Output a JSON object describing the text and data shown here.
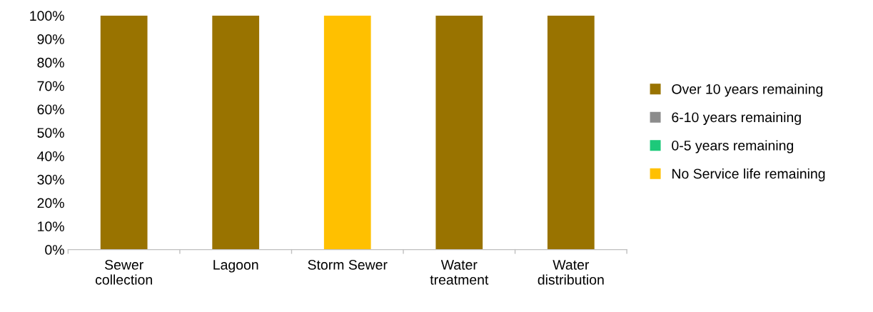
{
  "chart_data": {
    "type": "bar",
    "stacked": true,
    "categories": [
      "Sewer\ncollection",
      "Lagoon",
      "Storm Sewer",
      "Water\ntreatment",
      "Water\ndistribution"
    ],
    "series": [
      {
        "name": "No Service life remaining",
        "color": "#ffc000",
        "values": [
          0,
          0,
          100,
          0,
          0
        ]
      },
      {
        "name": "0-5 years remaining",
        "color": "#1dc97a",
        "values": [
          0,
          0,
          0,
          0,
          0
        ]
      },
      {
        "name": "6-10 years remaining",
        "color": "#8c8c8c",
        "values": [
          0,
          0,
          0,
          0,
          0
        ]
      },
      {
        "name": "Over 10 years remaining",
        "color": "#997300",
        "values": [
          100,
          100,
          0,
          100,
          100
        ]
      }
    ],
    "ylim": [
      0,
      100
    ],
    "yticks": [
      {
        "value": 0,
        "label": "0%"
      },
      {
        "value": 10,
        "label": "10%"
      },
      {
        "value": 20,
        "label": "20%"
      },
      {
        "value": 30,
        "label": "30%"
      },
      {
        "value": 40,
        "label": "40%"
      },
      {
        "value": 50,
        "label": "50%"
      },
      {
        "value": 60,
        "label": "60%"
      },
      {
        "value": 70,
        "label": "70%"
      },
      {
        "value": 80,
        "label": "80%"
      },
      {
        "value": 90,
        "label": "90%"
      },
      {
        "value": 100,
        "label": "100%"
      }
    ],
    "grid": false,
    "legend": "right"
  }
}
